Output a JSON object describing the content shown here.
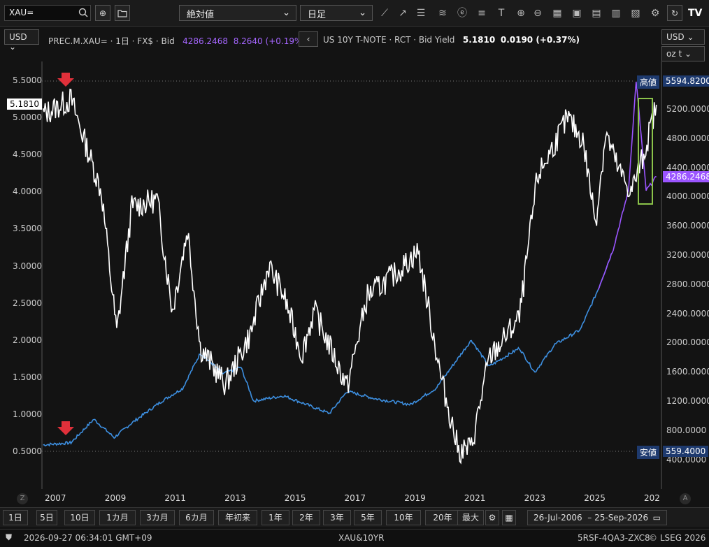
{
  "toolbar": {
    "search_value": "XAU=",
    "scale_mode": "絶対値",
    "interval": "日足"
  },
  "legend": {
    "primary_name": "PREC.M.XAU= · 1日 · FX$ · Bid",
    "primary_value": "4286.2468",
    "primary_change": "8.2640 (+0.19%)",
    "secondary_name": "US 10Y T-NOTE · RCT · Bid Yield",
    "secondary_value": "5.1810",
    "secondary_change": "0.0190 (+0.37%)"
  },
  "left_axis": {
    "unit": "USD",
    "ticks": [
      "5.5000",
      "5.0000",
      "4.5000",
      "4.0000",
      "3.5000",
      "3.0000",
      "2.5000",
      "2.0000",
      "1.5000",
      "1.0000",
      "0.5000"
    ],
    "current_label": "5.1810"
  },
  "right_axis": {
    "unit": "USD",
    "weight_unit": "oz t",
    "ticks": [
      "5200.0000",
      "4800.0000",
      "4400.0000",
      "4000.0000",
      "3600.0000",
      "3200.0000",
      "2800.0000",
      "2400.0000",
      "2000.0000",
      "1600.0000",
      "1200.0000",
      "800.0000",
      "400.0000"
    ],
    "high_label": "高値",
    "high_value": "5594.8200",
    "low_label": "安値",
    "low_value": "559.4000",
    "current_value": "4286.2468"
  },
  "x_axis": {
    "ticks": [
      "2007",
      "2009",
      "2011",
      "2013",
      "2015",
      "2017",
      "2019",
      "2021",
      "2023",
      "2025",
      "202"
    ],
    "left_btn": "Z",
    "right_btn": "A"
  },
  "periods": [
    "1日",
    "5日",
    "10日",
    "1カ月",
    "3カ月",
    "6カ月",
    "年初来",
    "1年",
    "2年",
    "3年",
    "5年",
    "10年",
    "20年",
    "最大"
  ],
  "date_range": {
    "from": "26-Jul-2006",
    "sep": "–",
    "to": "25-Sep-2026"
  },
  "status": {
    "timestamp": "2026-09-27 06:34:01 GMT+09",
    "instrument": "XAU&10YR",
    "code": "5RSF-4QA3-ZXC8",
    "copyright": "© LSEG 2026"
  },
  "colors": {
    "gold_line": "#3d8fe0",
    "gold_recent": "#9b55ff",
    "yield_line": "#ffffff",
    "highlight_box": "#8bc34a",
    "marker": "#e0303a"
  },
  "chart_data": [
    {
      "type": "line",
      "series": [
        {
          "name": "US 10Y T-NOTE · RCT · Bid Yield",
          "x": [
            "2006-07",
            "2007-06",
            "2008-06",
            "2008-12",
            "2009-06",
            "2010-04",
            "2010-10",
            "2011-04",
            "2011-09",
            "2012-07",
            "2013-05",
            "2013-12",
            "2014-06",
            "2015-01",
            "2015-06",
            "2016-07",
            "2017-03",
            "2018-02",
            "2018-11",
            "2019-08",
            "2020-03",
            "2020-08",
            "2021-03",
            "2022-03",
            "2022-10",
            "2023-10",
            "2024-04",
            "2024-09",
            "2025-01",
            "2025-06",
            "2025-11",
            "2026-04",
            "2026-09"
          ],
          "values": [
            5.05,
            5.25,
            4.0,
            2.1,
            3.8,
            3.9,
            2.4,
            3.5,
            1.9,
            1.4,
            2.1,
            3.0,
            2.6,
            1.8,
            2.4,
            1.37,
            2.6,
            2.9,
            3.2,
            1.5,
            0.5,
            0.55,
            1.75,
            2.3,
            4.2,
            5.0,
            4.7,
            3.6,
            4.8,
            4.3,
            4.0,
            4.5,
            5.18
          ]
        },
        {
          "name": "PREC.M.XAU= · 1日 · FX$ · Bid",
          "x": [
            "2006-07",
            "2007-06",
            "2008-03",
            "2008-11",
            "2009-06",
            "2010-06",
            "2011-02",
            "2011-09",
            "2012-06",
            "2013-01",
            "2013-06",
            "2014-06",
            "2015-12",
            "2016-07",
            "2017-06",
            "2018-08",
            "2019-06",
            "2020-08",
            "2021-03",
            "2022-03",
            "2022-09",
            "2023-05",
            "2024-03",
            "2024-10",
            "2025-04",
            "2025-10",
            "2026-01",
            "2026-05",
            "2026-09"
          ],
          "values": [
            630,
            660,
            980,
            730,
            930,
            1230,
            1400,
            1880,
            1600,
            1690,
            1230,
            1300,
            1060,
            1360,
            1260,
            1180,
            1400,
            2060,
            1700,
            1950,
            1620,
            2000,
            2200,
            2750,
            3300,
            4100,
            5594,
            4100,
            4286
          ]
        }
      ],
      "ylim_left": [
        0.3,
        5.7
      ],
      "ylim_right": [
        200,
        5700
      ]
    }
  ]
}
